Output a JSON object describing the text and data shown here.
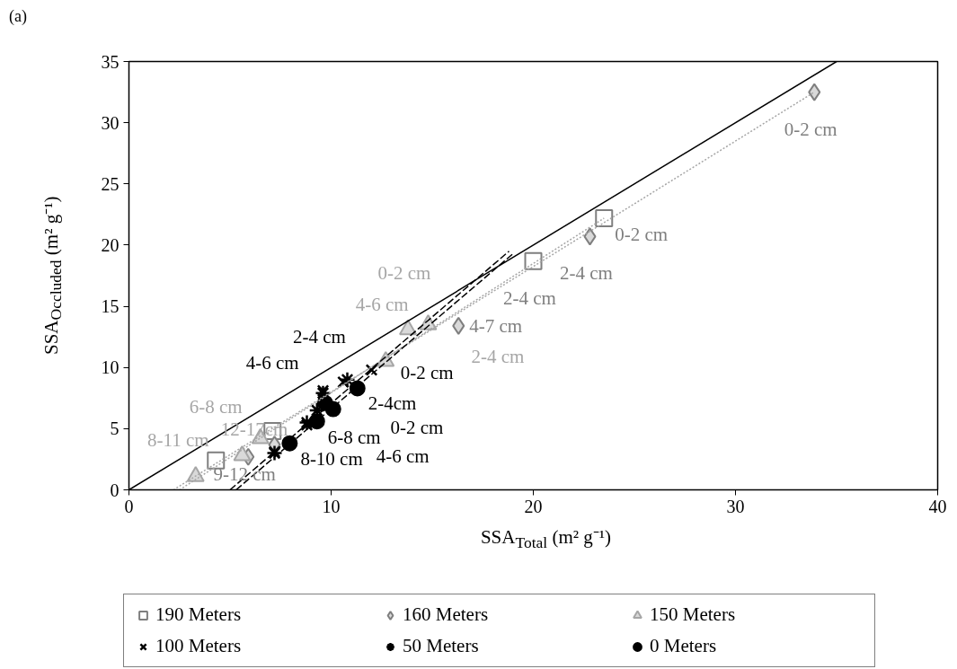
{
  "chart_data": {
    "type": "scatter",
    "xlabel": "SSA$_{Total}$ (m² g⁻¹)",
    "ylabel": "SSA$_{Occluded}$ (m² g⁻¹)",
    "xlim": [
      0,
      40
    ],
    "ylim": [
      0,
      35
    ],
    "xticks": [
      0,
      10,
      20,
      30,
      40
    ],
    "yticks": [
      0,
      5,
      10,
      15,
      20,
      25,
      30,
      35
    ],
    "grid": false,
    "legend": "bottom",
    "series": [
      {
        "name": "190 Meters",
        "marker": "square",
        "color": "#7f7f7f",
        "x": [
          23.5,
          20.0,
          7.1,
          4.3
        ],
        "values": [
          22.2,
          18.7,
          4.8,
          2.4
        ]
      },
      {
        "name": "160 Meters",
        "marker": "diamond",
        "color": "#7f7f7f",
        "x": [
          33.9,
          22.8,
          16.3,
          7.2,
          5.9
        ],
        "values": [
          32.5,
          20.7,
          13.4,
          3.7,
          2.7
        ]
      },
      {
        "name": "150 Meters",
        "marker": "triangle",
        "color": "#a6a6a6",
        "x": [
          13.8,
          14.8,
          12.7,
          6.5,
          5.6,
          3.3
        ],
        "values": [
          13.1,
          13.5,
          10.5,
          4.2,
          2.8,
          1.1
        ]
      },
      {
        "name": "100 Meters",
        "marker": "cross",
        "color": "#000000",
        "x": [
          12.0,
          10.6,
          9.6,
          8.8,
          7.2
        ],
        "values": [
          9.8,
          8.8,
          8.1,
          5.3,
          3.1
        ]
      },
      {
        "name": "50 Meters",
        "marker": "cross",
        "color": "#000000",
        "x": [
          10.8,
          9.6,
          9.3,
          8.8,
          7.2
        ],
        "values": [
          9.0,
          7.9,
          6.5,
          5.5,
          3.0
        ]
      },
      {
        "name": "0 Meters",
        "marker": "circle",
        "color": "#000000",
        "x": [
          11.3,
          10.1,
          9.7,
          9.3,
          7.95
        ],
        "values": [
          8.3,
          6.6,
          7.1,
          5.6,
          3.8
        ]
      },
      {
        "type": "line",
        "line_style": "solid",
        "color": "#000000",
        "x": [
          0,
          35
        ],
        "values": [
          0,
          35
        ]
      },
      {
        "type": "line",
        "line_style": "dotted",
        "color": "#a6a6a6",
        "x": [
          2.2,
          33.9
        ],
        "values": [
          0,
          32.5
        ]
      },
      {
        "type": "line",
        "line_style": "dotted",
        "color": "#a6a6a6",
        "x": [
          2.5,
          23.5
        ],
        "values": [
          0,
          22.2
        ]
      },
      {
        "type": "line",
        "line_style": "dashed",
        "color": "#000000",
        "x": [
          5.0,
          18.8
        ],
        "values": [
          0,
          19.5
        ]
      },
      {
        "type": "line",
        "line_style": "dashed",
        "color": "#000000",
        "x": [
          5.3,
          19.0
        ],
        "values": [
          0,
          19.3
        ]
      }
    ],
    "annotations": [
      "(a)",
      {
        "text": "0-2 cm",
        "x": 33.9,
        "y": 32.5
      },
      {
        "text": "0-2 cm",
        "x": 23.5,
        "y": 22.2
      },
      {
        "text": "2-4 cm",
        "x": 22.8,
        "y": 20.7
      },
      {
        "text": "2-4 cm",
        "x": 20.0,
        "y": 18.7
      },
      {
        "text": "4-7 cm",
        "x": 16.3,
        "y": 13.4
      },
      {
        "text": "2-4 cm",
        "x": 14.8,
        "y": 13.5
      },
      {
        "text": "0-2 cm",
        "x": 13.8,
        "y": 13.1
      },
      {
        "text": "4-6 cm",
        "x": 12.7,
        "y": 10.5
      },
      {
        "text": "6-8 cm",
        "x": 6.5,
        "y": 4.2
      },
      {
        "text": "8-11 cm",
        "x": 5.6,
        "y": 2.8
      },
      {
        "text": "9-12 cm",
        "x": 5.9,
        "y": 2.7
      },
      {
        "text": "12-17cm",
        "x": 3.3,
        "y": 1.1
      },
      {
        "text": "0-2 cm",
        "x": 11.3,
        "y": 8.3
      },
      {
        "text": "2-4cm",
        "x": 9.7,
        "y": 7.1
      },
      {
        "text": "4-6 cm",
        "x": 10.1,
        "y": 6.6
      },
      {
        "text": "6-8 cm",
        "x": 9.3,
        "y": 5.6
      },
      {
        "text": "8-10 cm",
        "x": 7.95,
        "y": 3.8
      },
      {
        "text": "0-2 cm",
        "x": 10.8,
        "y": 9.0
      },
      {
        "text": "2-4 cm",
        "x": 9.6,
        "y": 7.9
      },
      {
        "text": "4-6 cm",
        "x": 9.3,
        "y": 6.5
      }
    ]
  }
}
